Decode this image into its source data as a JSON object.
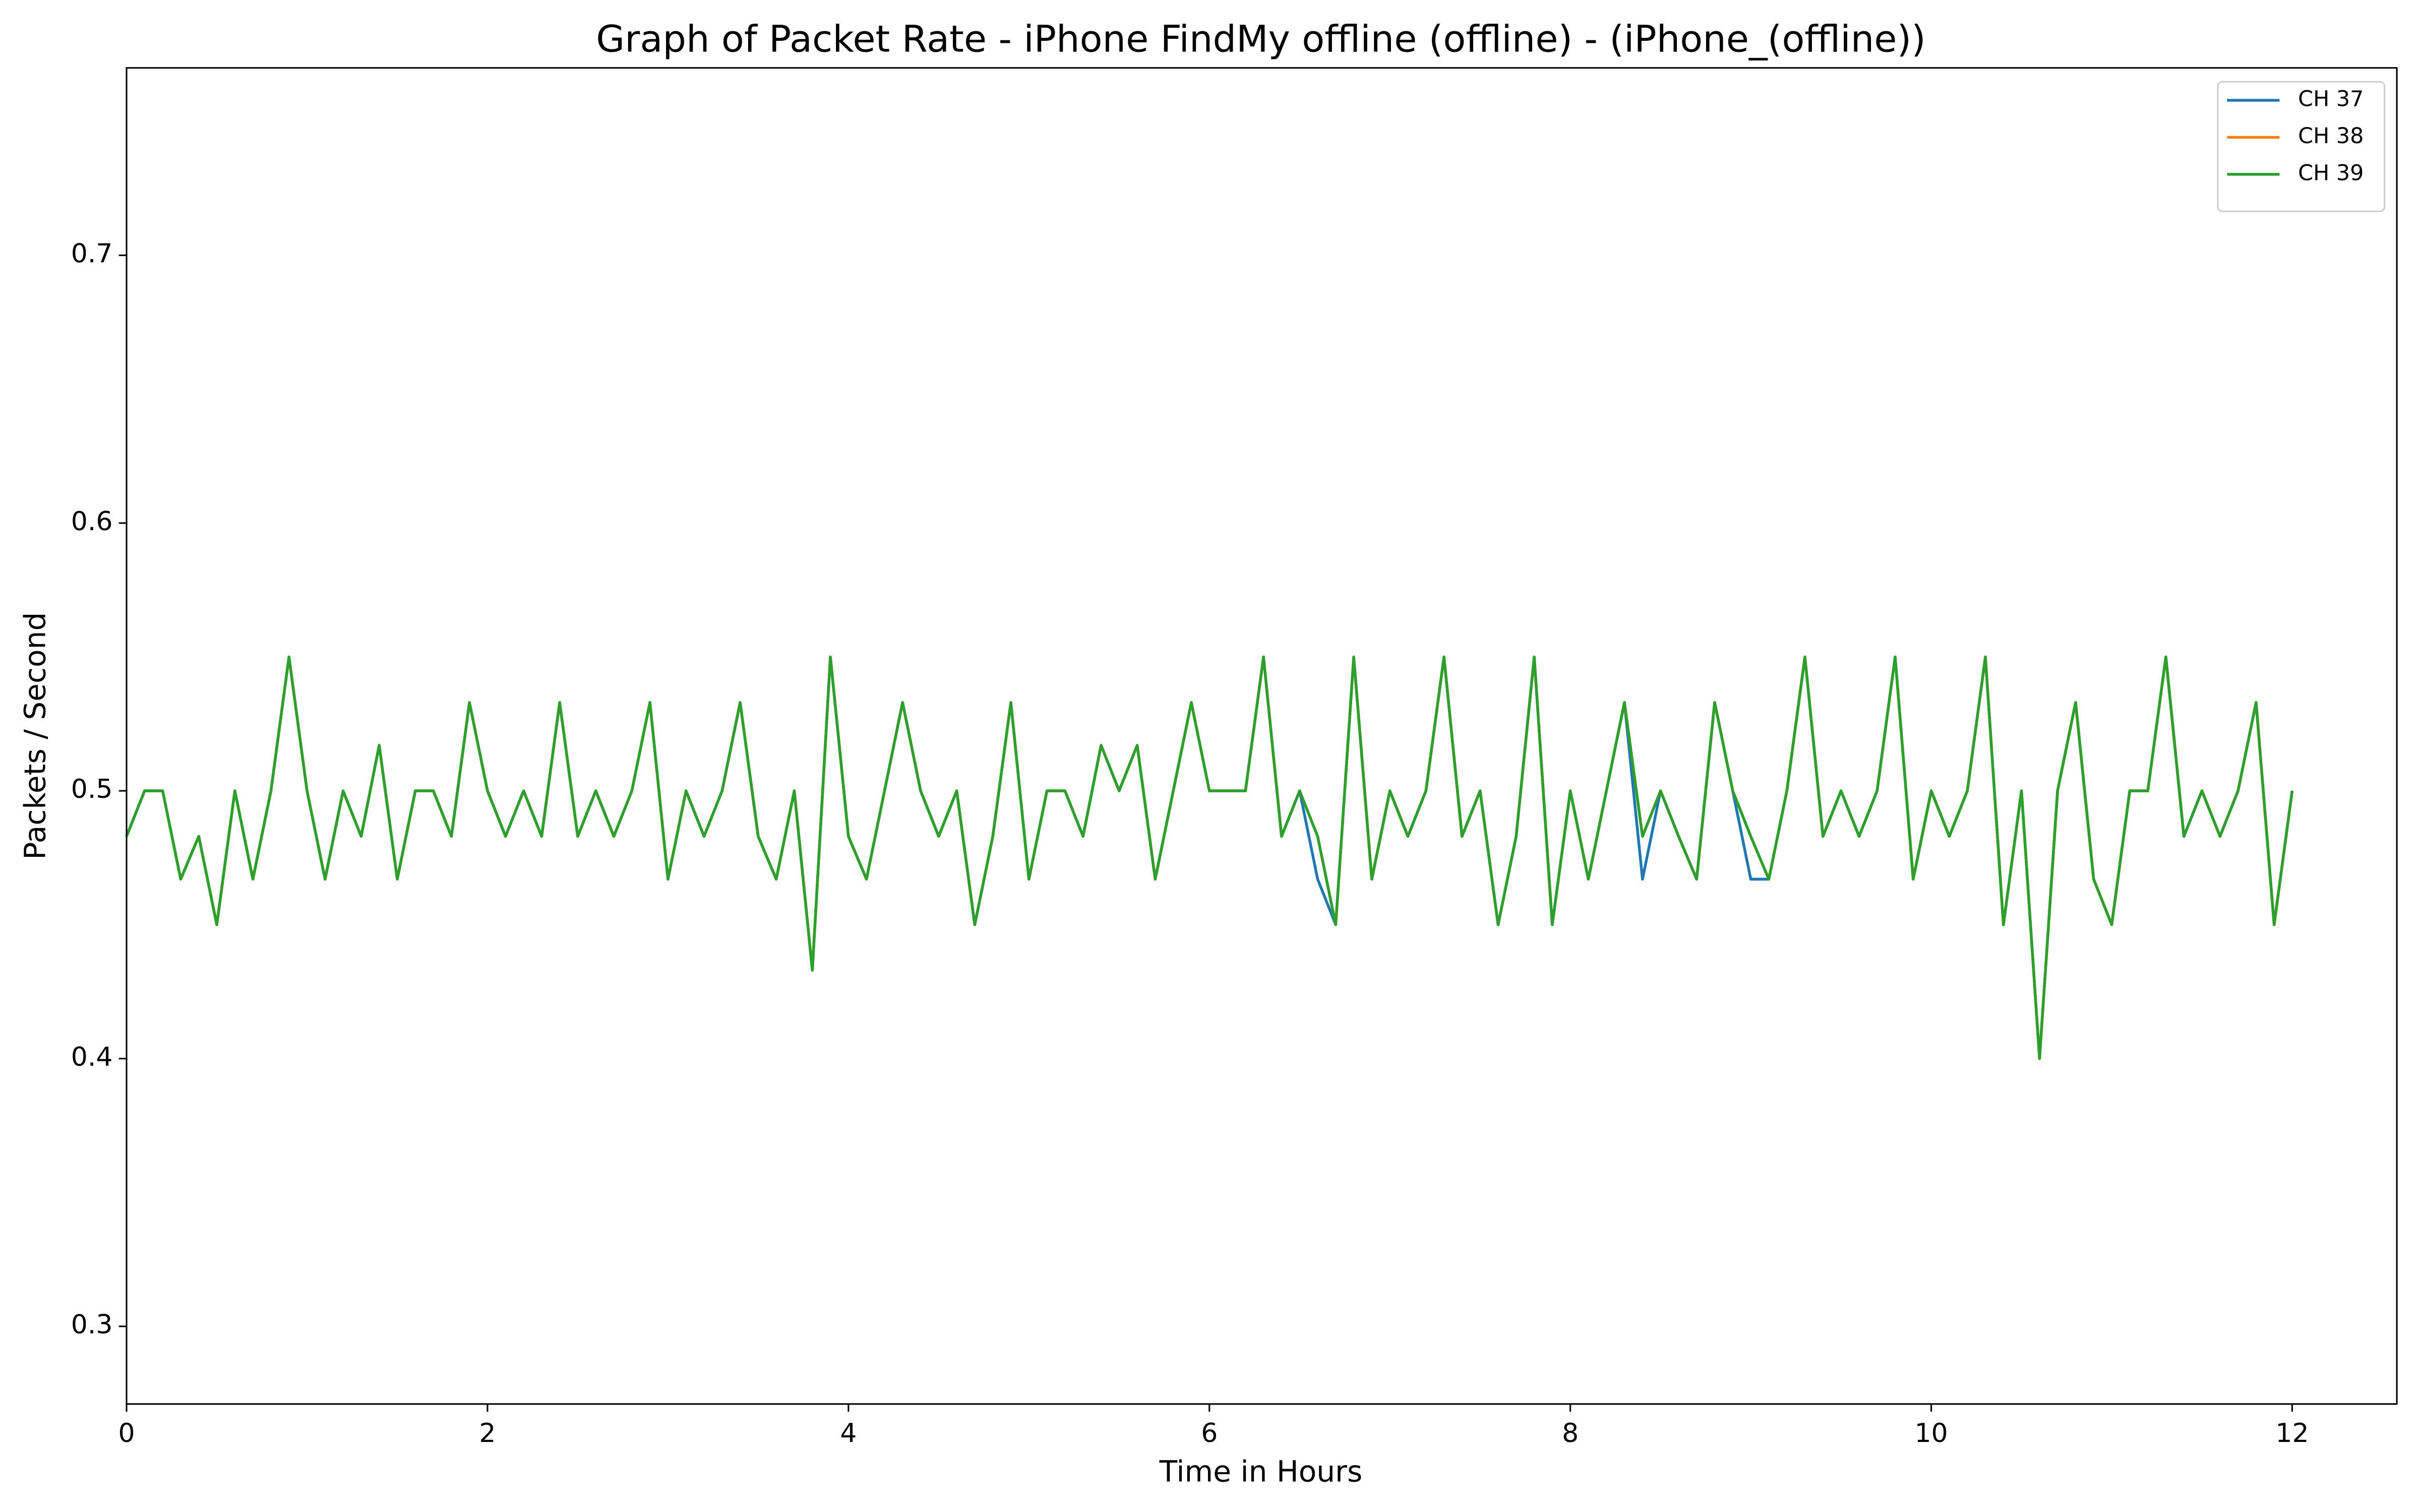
{
  "chart_data": {
    "type": "line",
    "title": "Graph of Packet Rate - iPhone FindMy offline (offline) - (iPhone_(offline))",
    "x_label": "Time in Hours",
    "y_label": "Packets / Second",
    "xlim": [
      0,
      12.58
    ],
    "ylim": [
      0.271,
      0.77
    ],
    "xticks": [
      0,
      2,
      4,
      6,
      8,
      10,
      12
    ],
    "yticks": [
      0.3,
      0.4,
      0.5,
      0.6,
      0.7
    ],
    "legend": "upper right",
    "x": [
      0,
      0.1,
      0.2,
      0.3,
      0.4,
      0.5,
      0.6,
      0.7,
      0.8,
      0.9,
      1,
      1.1,
      1.2,
      1.3,
      1.4,
      1.5,
      1.6,
      1.7,
      1.8,
      1.9,
      2,
      2.1,
      2.2,
      2.3,
      2.4,
      2.5,
      2.6,
      2.7,
      2.8,
      2.9,
      3,
      3.1,
      3.2,
      3.3,
      3.4,
      3.5,
      3.6,
      3.7,
      3.8,
      3.9,
      4,
      4.1,
      4.2,
      4.3,
      4.4,
      4.5,
      4.6,
      4.7,
      4.8,
      4.9,
      5,
      5.1,
      5.2,
      5.3,
      5.4,
      5.5,
      5.6,
      5.7,
      5.8,
      5.9,
      6,
      6.1,
      6.2,
      6.3,
      6.4,
      6.5,
      6.6,
      6.7,
      6.8,
      6.9,
      7,
      7.1,
      7.2,
      7.3,
      7.4,
      7.5,
      7.6,
      7.7,
      7.8,
      7.9,
      8,
      8.1,
      8.2,
      8.3,
      8.4,
      8.5,
      8.6,
      8.7,
      8.8,
      8.9,
      9,
      9.1,
      9.2,
      9.3,
      9.4,
      9.5,
      9.6,
      9.7,
      9.8,
      9.9,
      10,
      10.1,
      10.2,
      10.3,
      10.4,
      10.5,
      10.6,
      10.7,
      10.8,
      10.9,
      11,
      11.1,
      11.2,
      11.3,
      11.4,
      11.5,
      11.6,
      11.7,
      11.8,
      11.9,
      12
    ],
    "series": [
      {
        "name": "CH 37",
        "color": "#1f77b4",
        "values": [
          0.483,
          0.5,
          0.5,
          0.467,
          0.483,
          0.45,
          0.5,
          0.467,
          0.5,
          0.55,
          0.5,
          0.467,
          0.5,
          0.483,
          0.517,
          0.467,
          0.5,
          0.5,
          0.483,
          0.533,
          0.5,
          0.483,
          0.5,
          0.483,
          0.533,
          0.483,
          0.5,
          0.483,
          0.5,
          0.533,
          0.467,
          0.5,
          0.483,
          0.5,
          0.533,
          0.483,
          0.467,
          0.5,
          0.433,
          0.55,
          0.483,
          0.467,
          0.5,
          0.533,
          0.5,
          0.483,
          0.5,
          0.45,
          0.483,
          0.533,
          0.467,
          0.5,
          0.5,
          0.483,
          0.517,
          0.5,
          0.517,
          0.467,
          0.5,
          0.533,
          0.5,
          0.5,
          0.5,
          0.55,
          0.483,
          0.5,
          0.467,
          0.45,
          0.55,
          0.467,
          0.5,
          0.483,
          0.5,
          0.55,
          0.483,
          0.5,
          0.45,
          0.483,
          0.55,
          0.45,
          0.5,
          0.467,
          0.5,
          0.533,
          0.467,
          0.5,
          0.483,
          0.467,
          0.533,
          0.5,
          0.467,
          0.467,
          0.5,
          0.55,
          0.483,
          0.5,
          0.483,
          0.5,
          0.55,
          0.467,
          0.5,
          0.483,
          0.5,
          0.55,
          0.45,
          0.5,
          0.4,
          0.5,
          0.533,
          0.467,
          0.45,
          0.5,
          0.5,
          0.55,
          0.483,
          0.5,
          0.483,
          0.5,
          0.533,
          0.45,
          0.5
        ]
      },
      {
        "name": "CH 38",
        "color": "#ff7f0e",
        "values": [
          0.483,
          0.5,
          0.5,
          0.467,
          0.483,
          0.45,
          0.5,
          0.467,
          0.5,
          0.55,
          0.5,
          0.467,
          0.5,
          0.483,
          0.517,
          0.467,
          0.5,
          0.5,
          0.483,
          0.533,
          0.5,
          0.483,
          0.5,
          0.483,
          0.533,
          0.483,
          0.5,
          0.483,
          0.5,
          0.533,
          0.467,
          0.5,
          0.483,
          0.5,
          0.533,
          0.483,
          0.467,
          0.5,
          0.433,
          0.55,
          0.483,
          0.467,
          0.5,
          0.533,
          0.5,
          0.483,
          0.5,
          0.45,
          0.483,
          0.533,
          0.467,
          0.5,
          0.5,
          0.483,
          0.517,
          0.5,
          0.517,
          0.467,
          0.5,
          0.533,
          0.5,
          0.5,
          0.5,
          0.55,
          0.483,
          0.5,
          0.483,
          0.45,
          0.55,
          0.467,
          0.5,
          0.483,
          0.5,
          0.55,
          0.483,
          0.5,
          0.45,
          0.483,
          0.55,
          0.45,
          0.5,
          0.467,
          0.5,
          0.533,
          0.483,
          0.5,
          0.483,
          0.467,
          0.533,
          0.5,
          0.483,
          0.467,
          0.5,
          0.55,
          0.483,
          0.5,
          0.483,
          0.5,
          0.55,
          0.467,
          0.5,
          0.483,
          0.5,
          0.55,
          0.45,
          0.5,
          0.4,
          0.5,
          0.533,
          0.467,
          0.45,
          0.5,
          0.5,
          0.55,
          0.483,
          0.5,
          0.483,
          0.5,
          0.533,
          0.45,
          0.5
        ]
      },
      {
        "name": "CH 39",
        "color": "#2ca02c",
        "values": [
          0.483,
          0.5,
          0.5,
          0.467,
          0.483,
          0.45,
          0.5,
          0.467,
          0.5,
          0.55,
          0.5,
          0.467,
          0.5,
          0.483,
          0.517,
          0.467,
          0.5,
          0.5,
          0.483,
          0.533,
          0.5,
          0.483,
          0.5,
          0.483,
          0.533,
          0.483,
          0.5,
          0.483,
          0.5,
          0.533,
          0.467,
          0.5,
          0.483,
          0.5,
          0.533,
          0.483,
          0.467,
          0.5,
          0.433,
          0.55,
          0.483,
          0.467,
          0.5,
          0.533,
          0.5,
          0.483,
          0.5,
          0.45,
          0.483,
          0.533,
          0.467,
          0.5,
          0.5,
          0.483,
          0.517,
          0.5,
          0.517,
          0.467,
          0.5,
          0.533,
          0.5,
          0.5,
          0.5,
          0.55,
          0.483,
          0.5,
          0.483,
          0.45,
          0.55,
          0.467,
          0.5,
          0.483,
          0.5,
          0.55,
          0.483,
          0.5,
          0.45,
          0.483,
          0.55,
          0.45,
          0.5,
          0.467,
          0.5,
          0.533,
          0.483,
          0.5,
          0.483,
          0.467,
          0.533,
          0.5,
          0.483,
          0.467,
          0.5,
          0.55,
          0.483,
          0.5,
          0.483,
          0.5,
          0.55,
          0.467,
          0.5,
          0.483,
          0.5,
          0.55,
          0.45,
          0.5,
          0.4,
          0.5,
          0.533,
          0.467,
          0.45,
          0.5,
          0.5,
          0.55,
          0.483,
          0.5,
          0.483,
          0.5,
          0.533,
          0.45,
          0.5
        ]
      }
    ]
  }
}
